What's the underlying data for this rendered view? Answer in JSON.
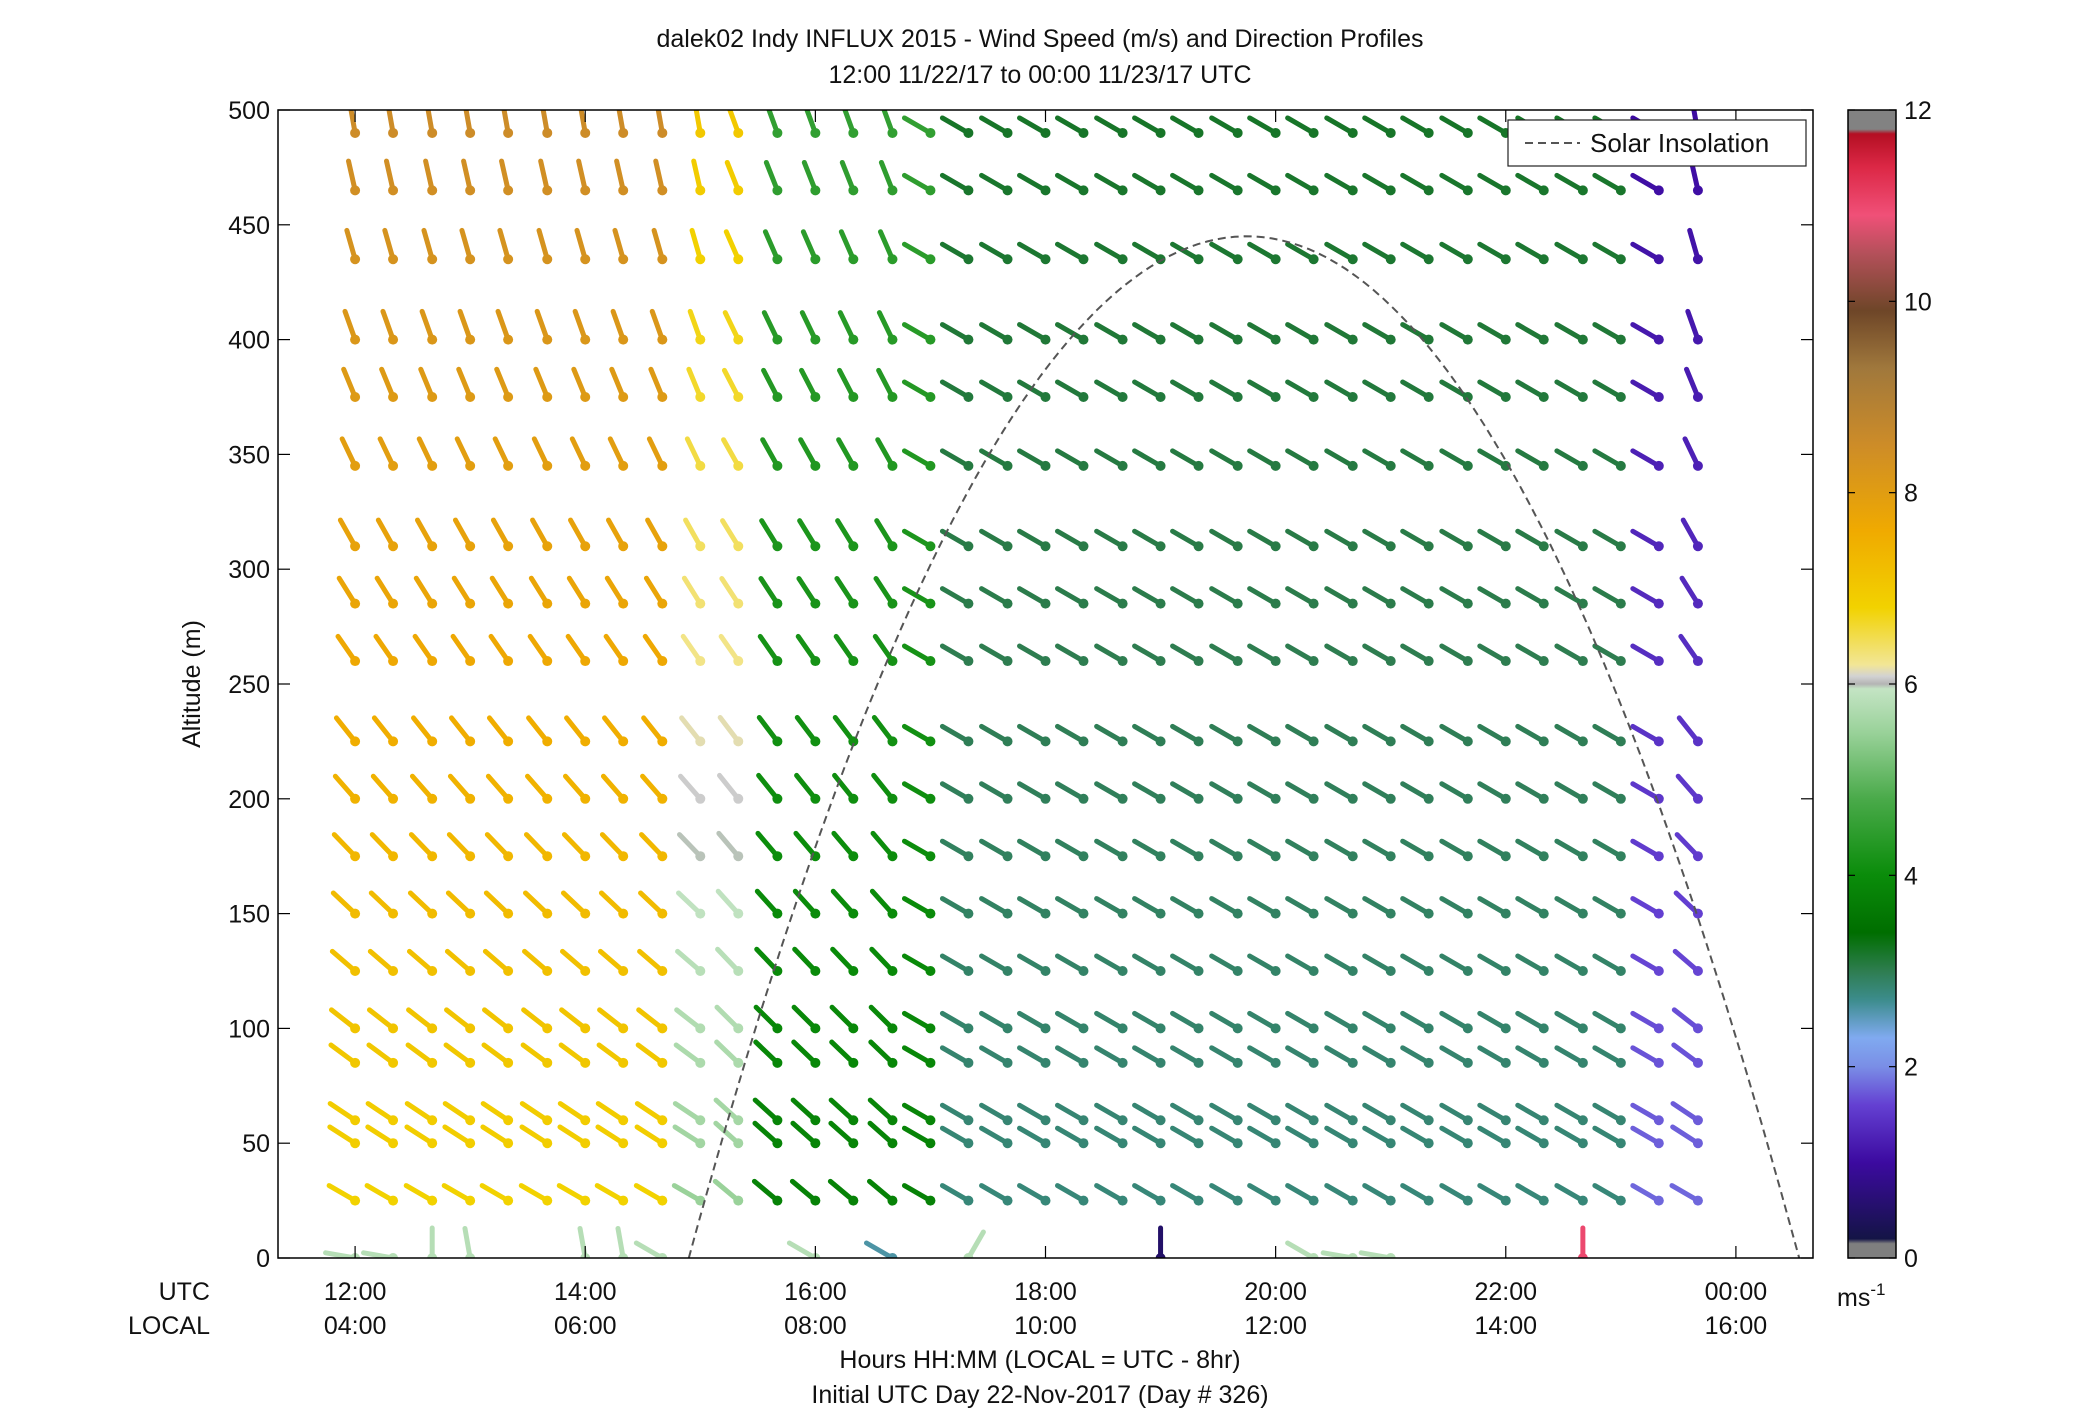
{
  "chart_data": {
    "type": "scatter",
    "subtype": "wind-barb profile",
    "title": "dalek02 Indy INFLUX 2015 - Wind Speed (m/s) and Direction Profiles",
    "subtitle": "12:00 11/22/17 to 00:00 11/23/17  UTC",
    "ylabel": "Altitude (m)",
    "xlabel": "Hours HH:MM  (LOCAL = UTC - 8hr)",
    "xlabel2": "Initial UTC Day 22-Nov-2017 (Day # 326)",
    "row_label_utc": "UTC",
    "row_label_local": "LOCAL",
    "x_ticks_utc": [
      "12:00",
      "14:00",
      "16:00",
      "18:00",
      "20:00",
      "22:00",
      "00:00"
    ],
    "x_ticks_local": [
      "04:00",
      "06:00",
      "08:00",
      "10:00",
      "12:00",
      "14:00",
      "16:00"
    ],
    "x_tick_hours": [
      12,
      14,
      16,
      18,
      20,
      22,
      24
    ],
    "xlim_hours": [
      11.33,
      24.67
    ],
    "ylim": [
      0,
      500
    ],
    "y_ticks": [
      0,
      50,
      100,
      150,
      200,
      250,
      300,
      350,
      400,
      450,
      500
    ],
    "y_tick_labels": [
      "0",
      "50",
      "100",
      "150",
      "200",
      "250",
      "300",
      "350",
      "400",
      "450",
      "500"
    ],
    "altitudes": [
      0,
      25,
      50,
      60,
      85,
      100,
      125,
      150,
      175,
      200,
      225,
      260,
      285,
      310,
      345,
      375,
      400,
      435,
      465,
      490
    ],
    "times_hours": [
      12.0,
      12.33,
      12.67,
      13.0,
      13.33,
      13.67,
      14.0,
      14.33,
      14.67,
      15.0,
      15.33,
      15.67,
      16.0,
      16.33,
      16.67,
      17.0,
      17.33,
      17.67,
      18.0,
      18.33,
      18.67,
      19.0,
      19.33,
      19.67,
      20.0,
      20.33,
      20.67,
      21.0,
      21.33,
      21.67,
      22.0,
      22.33,
      22.67,
      23.0,
      23.33,
      23.67
    ],
    "direction_regimes": [
      {
        "hours": [
          12.0,
          15.0
        ],
        "lower_deg": 300,
        "upper_deg": 350
      },
      {
        "hours": [
          15.0,
          16.67
        ],
        "lower_deg": 310,
        "upper_deg": 340
      },
      {
        "hours": [
          16.67,
          23.33
        ],
        "lower_deg": 300,
        "upper_deg": 300
      },
      {
        "hours": [
          23.33,
          23.67
        ],
        "lower_deg": 300,
        "upper_deg": 350
      }
    ],
    "speed_regimes": [
      {
        "hours": [
          12.0,
          14.67
        ],
        "lower_ms": 6.8,
        "upper_ms": 8.5
      },
      {
        "hours": [
          14.67,
          15.33
        ],
        "lower_ms": 5.5,
        "upper_ms": 7.0
      },
      {
        "hours": [
          15.33,
          17.0
        ],
        "lower_ms": 3.8,
        "upper_ms": 4.5
      },
      {
        "hours": [
          17.0,
          23.0
        ],
        "lower_ms": 2.8,
        "upper_ms": 3.2
      },
      {
        "hours": [
          23.0,
          23.67
        ],
        "lower_ms": 1.8,
        "upper_ms": 1.0
      }
    ],
    "surface_observations": [
      {
        "hour": 12.0,
        "dir_deg": 280,
        "speed_ms": 5.8
      },
      {
        "hour": 12.33,
        "dir_deg": 280,
        "speed_ms": 5.8
      },
      {
        "hour": 12.67,
        "dir_deg": 360,
        "speed_ms": 5.8
      },
      {
        "hour": 13.0,
        "dir_deg": 350,
        "speed_ms": 5.8
      },
      {
        "hour": 14.0,
        "dir_deg": 350,
        "speed_ms": 5.8
      },
      {
        "hour": 14.33,
        "dir_deg": 350,
        "speed_ms": 5.8
      },
      {
        "hour": 14.67,
        "dir_deg": 300,
        "speed_ms": 5.8
      },
      {
        "hour": 16.0,
        "dir_deg": 300,
        "speed_ms": 5.8
      },
      {
        "hour": 16.67,
        "dir_deg": 300,
        "speed_ms": 2.6
      },
      {
        "hour": 17.33,
        "dir_deg": 30,
        "speed_ms": 5.8
      },
      {
        "hour": 19.0,
        "dir_deg": 0,
        "speed_ms": 0.5
      },
      {
        "hour": 20.33,
        "dir_deg": 300,
        "speed_ms": 5.8
      },
      {
        "hour": 20.67,
        "dir_deg": 280,
        "speed_ms": 5.8
      },
      {
        "hour": 21.0,
        "dir_deg": 280,
        "speed_ms": 5.8
      },
      {
        "hour": 22.67,
        "dir_deg": 0,
        "speed_ms": 11.0
      }
    ],
    "series": [
      {
        "name": "Solar Insolation",
        "style": "dashed",
        "color": "#555555",
        "start_hour": 14.9,
        "peak_hour": 19.75,
        "end_hour": 24.55,
        "peak_altitude_m": 445
      }
    ],
    "legend": {
      "label": "Solar Insolation",
      "placement": "top-right"
    },
    "colorbar": {
      "min": 0,
      "max": 12,
      "ticks": [
        0,
        2,
        4,
        6,
        8,
        10,
        12
      ],
      "tick_labels": [
        "0",
        "2",
        "4",
        "6",
        "8",
        "10",
        "12"
      ],
      "unit_label": "ms",
      "unit_exponent": "-1",
      "stops": [
        {
          "v": 0.0,
          "c": "#7f7f7f"
        },
        {
          "v": 0.15,
          "c": "#7f7f7f"
        },
        {
          "v": 0.2,
          "c": "#141446"
        },
        {
          "v": 1.0,
          "c": "#3c0aa0"
        },
        {
          "v": 1.6,
          "c": "#6440d2"
        },
        {
          "v": 2.0,
          "c": "#7a8ee6"
        },
        {
          "v": 2.3,
          "c": "#80aaf0"
        },
        {
          "v": 2.7,
          "c": "#3c8c8c"
        },
        {
          "v": 3.0,
          "c": "#2e7d50"
        },
        {
          "v": 3.4,
          "c": "#006e00"
        },
        {
          "v": 4.0,
          "c": "#0a8c0a"
        },
        {
          "v": 4.8,
          "c": "#4aaa4a"
        },
        {
          "v": 5.5,
          "c": "#9ad29a"
        },
        {
          "v": 5.95,
          "c": "#c4e4c4"
        },
        {
          "v": 6.0,
          "c": "#b4b4b4"
        },
        {
          "v": 6.08,
          "c": "#d2d2d2"
        },
        {
          "v": 6.2,
          "c": "#f2e696"
        },
        {
          "v": 6.8,
          "c": "#f2d200"
        },
        {
          "v": 7.6,
          "c": "#f0aa00"
        },
        {
          "v": 8.5,
          "c": "#cd8c28"
        },
        {
          "v": 9.3,
          "c": "#a0783c"
        },
        {
          "v": 9.9,
          "c": "#6e4628"
        },
        {
          "v": 10.5,
          "c": "#b4505a"
        },
        {
          "v": 10.9,
          "c": "#f05078"
        },
        {
          "v": 11.4,
          "c": "#dc2846"
        },
        {
          "v": 11.75,
          "c": "#b40f23"
        },
        {
          "v": 11.8,
          "c": "#828282"
        },
        {
          "v": 12.0,
          "c": "#828282"
        }
      ]
    }
  }
}
